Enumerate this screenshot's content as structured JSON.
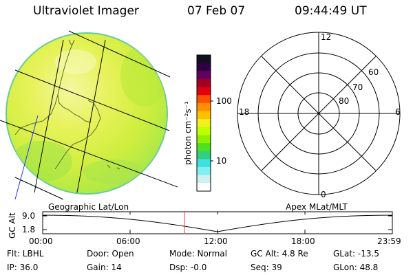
{
  "header": {
    "instrument": "Ultraviolet Imager",
    "date": "07 Feb 07",
    "time": "09:44:49 UT"
  },
  "image_panel": {
    "projection_label": "Geographic Lat/Lon"
  },
  "colorbar": {
    "unit_label": "photon cm⁻²s⁻¹",
    "tick_labels": [
      "100",
      "10"
    ],
    "colors": [
      "#101020",
      "#300040",
      "#600060",
      "#a00020",
      "#e00010",
      "#ff5000",
      "#ff9000",
      "#ffc000",
      "#f0f020",
      "#c0ff00",
      "#90f000",
      "#50e020",
      "#30d080",
      "#40e0e0",
      "#80f0f0",
      "#d0f0f0",
      "#ffffff"
    ]
  },
  "polar_plot": {
    "title": "Apex MLat/MLT",
    "mlt_labels": {
      "top": "12",
      "left": "18",
      "right": "6",
      "bottom": "0"
    },
    "lat_labels": [
      "60",
      "70",
      "80"
    ]
  },
  "altitude_plot": {
    "ylabel": "GC Alt",
    "y_ticks": [
      "9.0",
      "1.8"
    ],
    "x_ticks": [
      "00:00",
      "06:00",
      "12:00",
      "18:00",
      "23:59"
    ]
  },
  "info": {
    "flt": "Flt: LBHL",
    "ip": "IP: 36.0",
    "door": "Door: Open",
    "gain": "Gain: 14",
    "mode": "Mode: Normal",
    "dsp": "Dsp:  -0.0",
    "gc_alt": "GC Alt: 4.8 Re",
    "seq": "Seq: 39",
    "glat": "GLat: -13.5",
    "glon": "GLon:  48.8"
  }
}
